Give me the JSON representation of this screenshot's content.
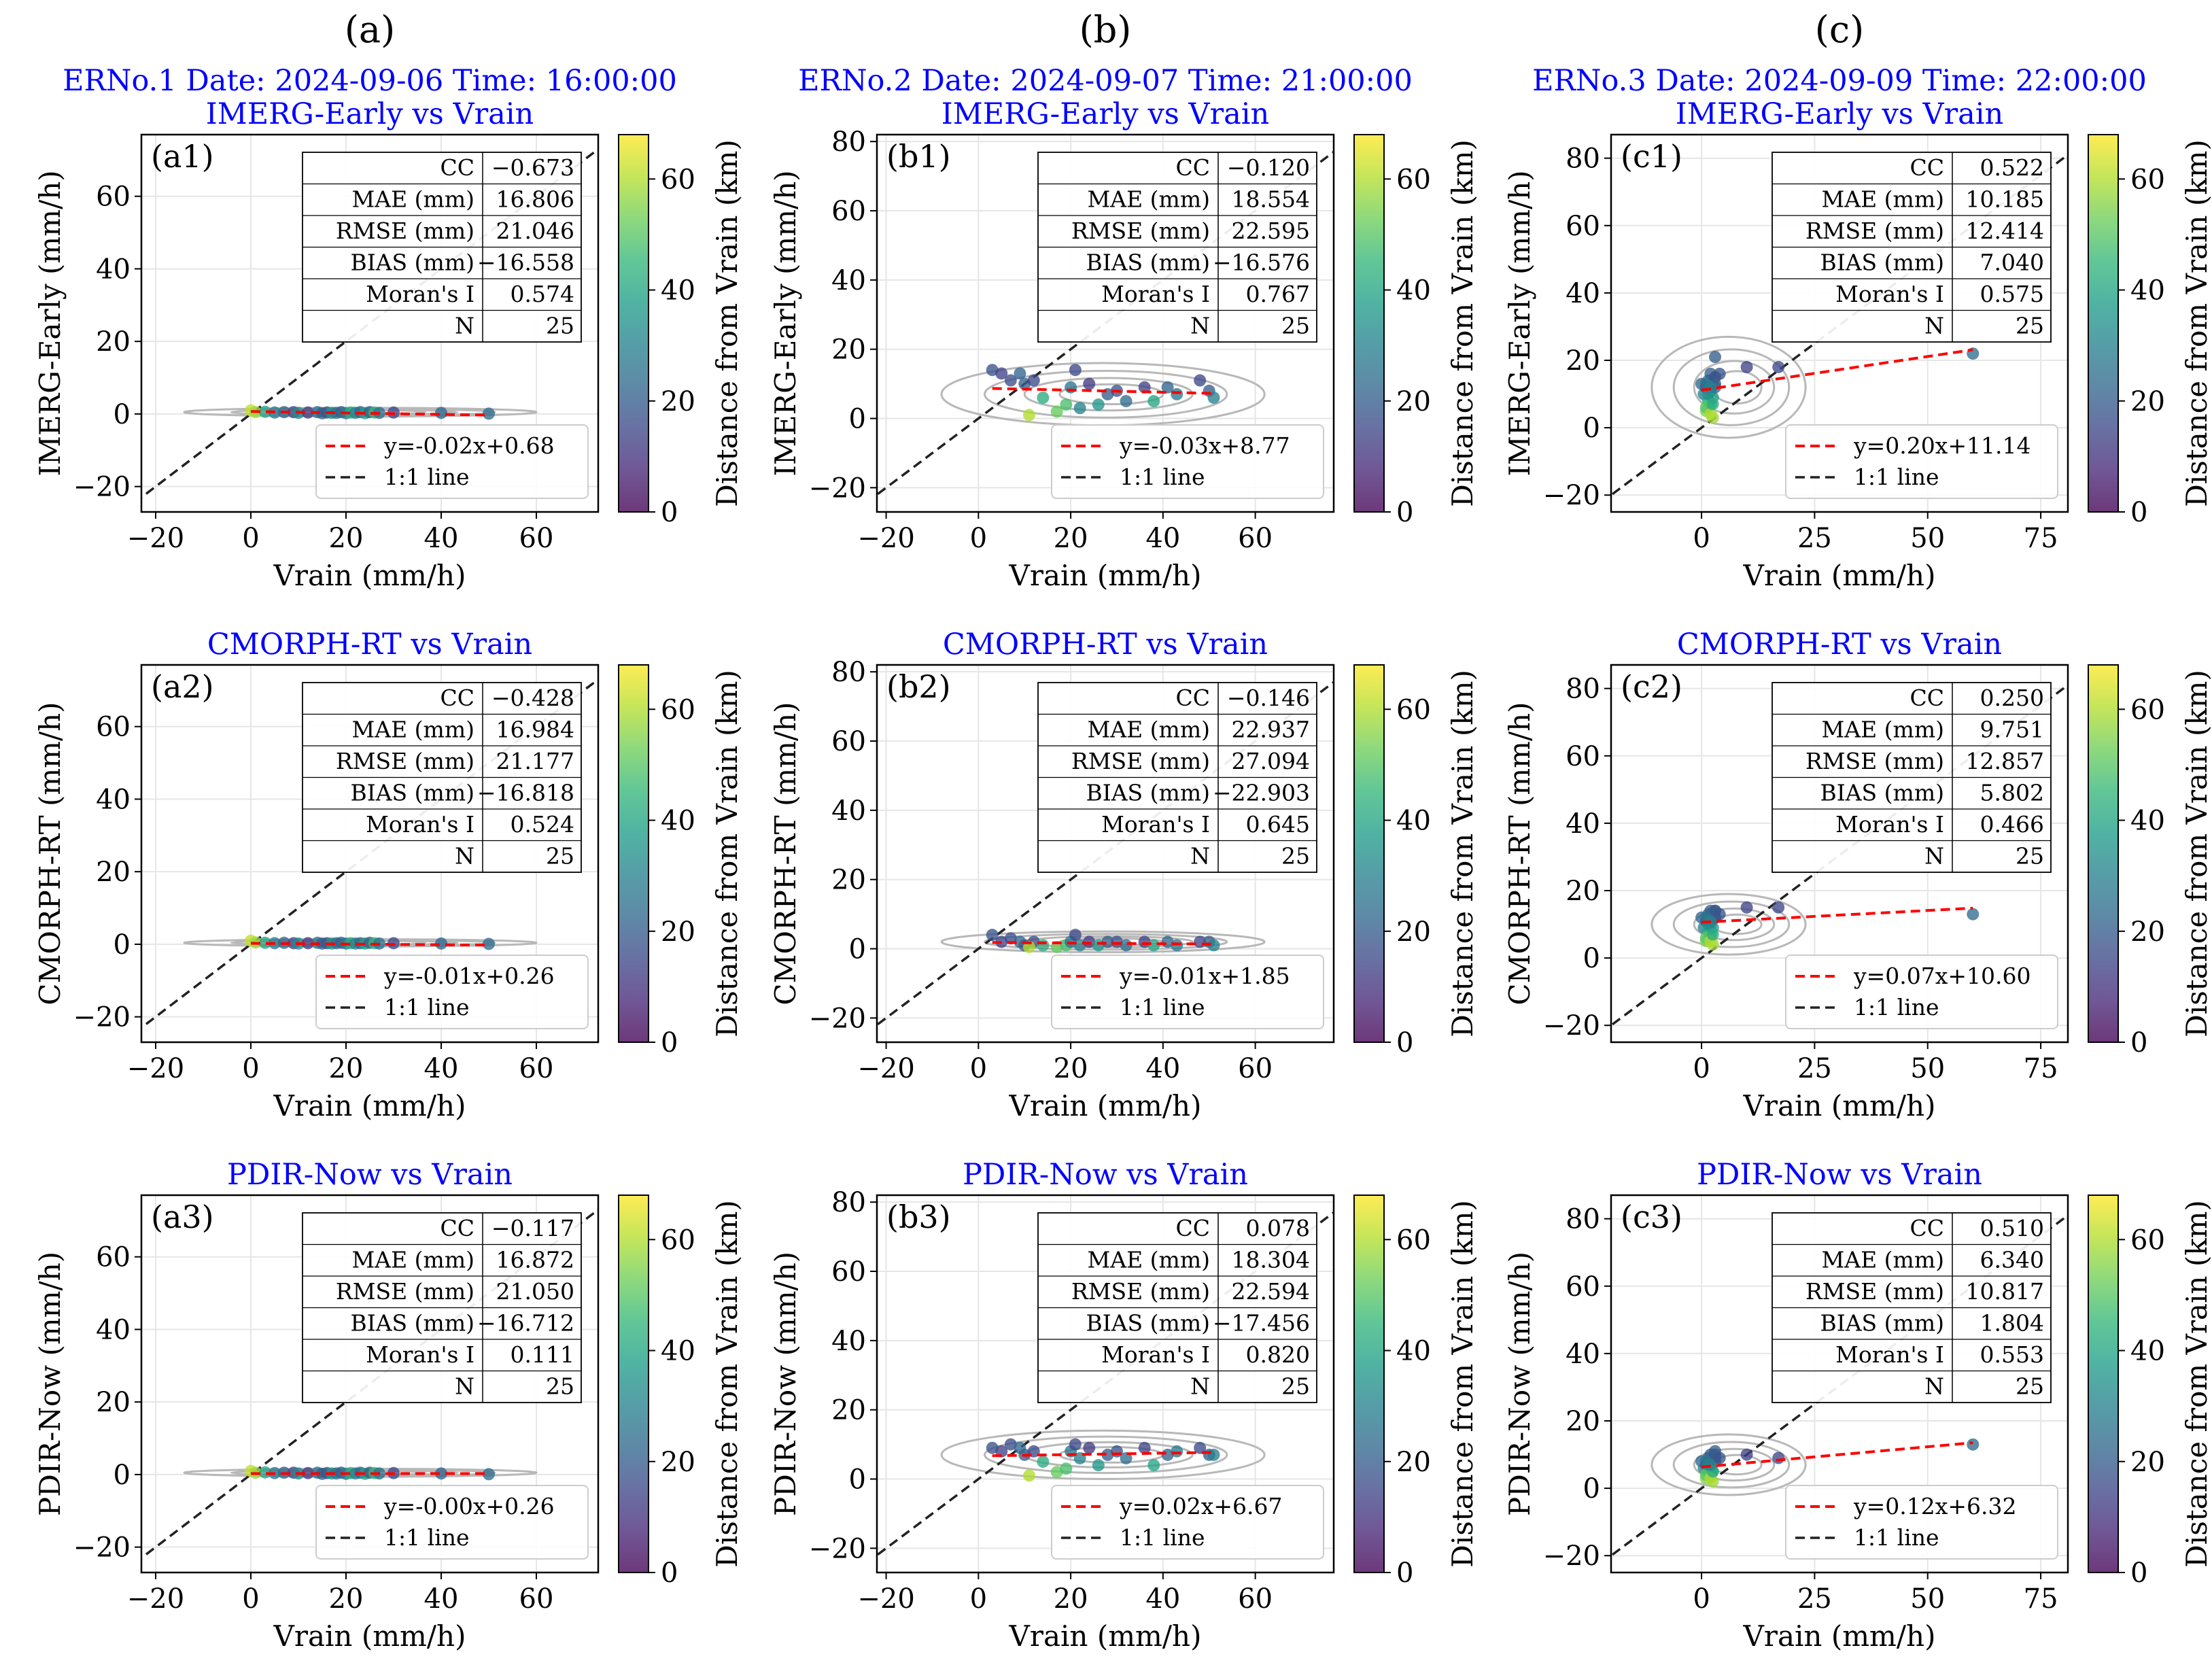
{
  "colors": {
    "title": "#0000ff",
    "fit_line": "#ff0000",
    "one_to_one": "#222222",
    "kde": "#b8b8b8",
    "grid": "#e6e6e6"
  },
  "colorbar": {
    "label": "Distance from Vrain (km)",
    "ticks": [
      0,
      20,
      40,
      60
    ],
    "range": [
      0,
      68
    ]
  },
  "legend_labels": {
    "one_to_one": "1:1 line"
  },
  "stats_labels": [
    "CC",
    "MAE (mm)",
    "RMSE (mm)",
    "BIAS (mm)",
    "Moran's I",
    "N"
  ],
  "xlabel": "Vrain (mm/h)",
  "columns": [
    {
      "letter": "(a)",
      "title": "ERNo.1 Date: 2024-09-06 Time: 16:00:00",
      "xlim": [
        -23,
        73
      ],
      "xticks": [
        -20,
        0,
        20,
        40,
        60
      ],
      "ylim": [
        -27,
        77
      ],
      "yticks": [
        -20,
        0,
        20,
        40,
        60
      ]
    },
    {
      "letter": "(b)",
      "title": "ERNo.2 Date: 2024-09-07 Time: 21:00:00",
      "xlim": [
        -22,
        77
      ],
      "xticks": [
        -20,
        0,
        20,
        40,
        60
      ],
      "ylim": [
        -27,
        82
      ],
      "yticks": [
        -20,
        0,
        20,
        40,
        60,
        80
      ]
    },
    {
      "letter": "(c)",
      "title": "ERNo.3 Date: 2024-09-09 Time: 22:00:00",
      "xlim": [
        -20,
        81
      ],
      "xticks": [
        0,
        25,
        50,
        75
      ],
      "ylim": [
        -25,
        87
      ],
      "yticks": [
        -20,
        0,
        20,
        40,
        60,
        80
      ]
    }
  ],
  "rows": [
    {
      "product_title": "IMERG-Early vs Vrain",
      "ylabel": "IMERG-Early (mm/h)"
    },
    {
      "product_title": "CMORPH-RT vs Vrain",
      "ylabel": "CMORPH-RT (mm/h)"
    },
    {
      "product_title": "PDIR-Now vs Vrain",
      "ylabel": "PDIR-Now (mm/h)"
    }
  ],
  "chart_data": [
    {
      "type": "scatter",
      "panel": "(a1)",
      "row": 0,
      "col": 0,
      "stats": [
        "−0.673",
        "16.806",
        "21.046",
        "−16.558",
        "0.574",
        "25"
      ],
      "fit": {
        "slope": -0.02,
        "intercept": 0.68,
        "label": "y=-0.02x+0.68"
      },
      "kde": {
        "cx": 23,
        "cy": 0.5,
        "rx": 37,
        "ry": 1.2
      },
      "points": [
        [
          0,
          1,
          62
        ],
        [
          1,
          0.5,
          58
        ],
        [
          3,
          0.6,
          40
        ],
        [
          5,
          0.4,
          28
        ],
        [
          7,
          0.5,
          22
        ],
        [
          9,
          0.5,
          15
        ],
        [
          10,
          0.3,
          32
        ],
        [
          12,
          0.4,
          12
        ],
        [
          14,
          0.5,
          26
        ],
        [
          15,
          0.2,
          20
        ],
        [
          16,
          0.4,
          18
        ],
        [
          17,
          0.3,
          35
        ],
        [
          18,
          0.3,
          25
        ],
        [
          19,
          0.5,
          20
        ],
        [
          20,
          0.2,
          28
        ],
        [
          21,
          0.4,
          42
        ],
        [
          22,
          0.3,
          30
        ],
        [
          23,
          0.5,
          22
        ],
        [
          24,
          0.2,
          38
        ],
        [
          25,
          0.5,
          20
        ],
        [
          26,
          0.4,
          45
        ],
        [
          27,
          0.3,
          24
        ],
        [
          30,
          0.4,
          15
        ],
        [
          40,
          0.3,
          22
        ],
        [
          50,
          0.1,
          24
        ]
      ]
    },
    {
      "type": "scatter",
      "panel": "(b1)",
      "row": 0,
      "col": 1,
      "stats": [
        "−0.120",
        "18.554",
        "22.595",
        "−16.576",
        "0.767",
        "25"
      ],
      "fit": {
        "slope": -0.03,
        "intercept": 8.77,
        "label": "y=-0.03x+8.77"
      },
      "kde": {
        "cx": 27,
        "cy": 7,
        "rx": 35,
        "ry": 9
      },
      "points": [
        [
          3,
          14,
          18
        ],
        [
          5,
          13,
          14
        ],
        [
          7,
          11,
          16
        ],
        [
          9,
          13,
          22
        ],
        [
          10,
          10,
          20
        ],
        [
          12,
          11,
          15
        ],
        [
          11,
          1,
          60
        ],
        [
          14,
          6,
          42
        ],
        [
          17,
          2,
          52
        ],
        [
          19,
          4,
          48
        ],
        [
          20,
          9,
          26
        ],
        [
          21,
          14,
          15
        ],
        [
          22,
          3,
          30
        ],
        [
          24,
          10,
          12
        ],
        [
          26,
          4,
          36
        ],
        [
          28,
          7,
          20
        ],
        [
          30,
          8,
          18
        ],
        [
          32,
          5,
          24
        ],
        [
          36,
          9,
          14
        ],
        [
          38,
          5,
          40
        ],
        [
          41,
          9,
          22
        ],
        [
          43,
          7,
          28
        ],
        [
          48,
          11,
          15
        ],
        [
          50,
          8,
          20
        ],
        [
          51,
          6,
          30
        ]
      ]
    },
    {
      "type": "scatter",
      "panel": "(c1)",
      "row": 0,
      "col": 2,
      "stats": [
        "0.522",
        "10.185",
        "12.414",
        "7.040",
        "0.575",
        "25"
      ],
      "fit": {
        "slope": 0.2,
        "intercept": 11.14,
        "label": "y=0.20x+11.14"
      },
      "kde": {
        "cx": 6,
        "cy": 12,
        "rx": 17,
        "ry": 15
      },
      "points": [
        [
          0,
          13,
          22
        ],
        [
          0.5,
          10,
          30
        ],
        [
          1,
          5,
          55
        ],
        [
          1,
          12,
          18
        ],
        [
          1.5,
          8,
          40
        ],
        [
          1.5,
          14,
          25
        ],
        [
          2,
          7,
          45
        ],
        [
          2,
          16,
          20
        ],
        [
          2,
          11,
          28
        ],
        [
          2.5,
          9,
          38
        ],
        [
          2.5,
          3,
          58
        ],
        [
          3,
          12,
          24
        ],
        [
          3,
          15,
          16
        ],
        [
          1,
          6,
          50
        ],
        [
          2,
          4,
          60
        ],
        [
          1.5,
          10,
          34
        ],
        [
          3,
          13,
          20
        ],
        [
          2.5,
          7,
          42
        ],
        [
          1,
          13,
          26
        ],
        [
          2,
          12,
          30
        ],
        [
          3,
          21,
          20
        ],
        [
          4,
          16,
          18
        ],
        [
          10,
          18,
          14
        ],
        [
          17,
          18,
          15
        ],
        [
          60,
          22,
          24
        ]
      ]
    },
    {
      "type": "scatter",
      "panel": "(a2)",
      "row": 1,
      "col": 0,
      "stats": [
        "−0.428",
        "16.984",
        "21.177",
        "−16.818",
        "0.524",
        "25"
      ],
      "fit": {
        "slope": -0.01,
        "intercept": 0.26,
        "label": "y=-0.01x+0.26"
      },
      "kde": {
        "cx": 23,
        "cy": 0.4,
        "rx": 37,
        "ry": 1.0
      },
      "points": [
        [
          0,
          1,
          62
        ],
        [
          1,
          0.5,
          58
        ],
        [
          3,
          0.4,
          40
        ],
        [
          5,
          0.3,
          28
        ],
        [
          7,
          0.4,
          22
        ],
        [
          9,
          0.3,
          15
        ],
        [
          10,
          0.2,
          32
        ],
        [
          12,
          0.3,
          12
        ],
        [
          14,
          0.4,
          26
        ],
        [
          15,
          0.2,
          20
        ],
        [
          16,
          0.3,
          18
        ],
        [
          17,
          0.2,
          35
        ],
        [
          18,
          0.3,
          25
        ],
        [
          19,
          0.4,
          20
        ],
        [
          20,
          0.2,
          28
        ],
        [
          21,
          0.3,
          42
        ],
        [
          22,
          0.2,
          30
        ],
        [
          23,
          0.3,
          22
        ],
        [
          24,
          0.2,
          38
        ],
        [
          25,
          0.4,
          20
        ],
        [
          26,
          0.3,
          45
        ],
        [
          27,
          0.2,
          24
        ],
        [
          30,
          0.3,
          15
        ],
        [
          40,
          0.2,
          22
        ],
        [
          50,
          0.1,
          24
        ]
      ]
    },
    {
      "type": "scatter",
      "panel": "(b2)",
      "row": 1,
      "col": 1,
      "stats": [
        "−0.146",
        "22.937",
        "27.094",
        "−22.903",
        "0.645",
        "25"
      ],
      "fit": {
        "slope": -0.01,
        "intercept": 1.85,
        "label": "y=-0.01x+1.85"
      },
      "kde": {
        "cx": 27,
        "cy": 2,
        "rx": 35,
        "ry": 3
      },
      "points": [
        [
          3,
          4,
          18
        ],
        [
          5,
          2,
          14
        ],
        [
          7,
          3,
          16
        ],
        [
          9,
          2,
          22
        ],
        [
          10,
          1,
          20
        ],
        [
          12,
          2,
          15
        ],
        [
          11,
          0.5,
          60
        ],
        [
          14,
          1,
          42
        ],
        [
          17,
          0.5,
          52
        ],
        [
          19,
          1,
          48
        ],
        [
          20,
          2,
          26
        ],
        [
          21,
          4,
          15
        ],
        [
          22,
          1,
          30
        ],
        [
          24,
          2,
          12
        ],
        [
          26,
          1,
          36
        ],
        [
          28,
          2,
          20
        ],
        [
          30,
          2,
          18
        ],
        [
          32,
          1,
          24
        ],
        [
          36,
          2,
          14
        ],
        [
          38,
          1,
          40
        ],
        [
          41,
          2,
          22
        ],
        [
          43,
          1,
          28
        ],
        [
          48,
          2,
          15
        ],
        [
          50,
          2,
          20
        ],
        [
          51,
          1,
          30
        ]
      ]
    },
    {
      "type": "scatter",
      "panel": "(c2)",
      "row": 1,
      "col": 2,
      "stats": [
        "0.250",
        "9.751",
        "12.857",
        "5.802",
        "0.466",
        "25"
      ],
      "fit": {
        "slope": 0.07,
        "intercept": 10.6,
        "label": "y=0.07x+10.60"
      },
      "kde": {
        "cx": 6,
        "cy": 10,
        "rx": 17,
        "ry": 9
      },
      "points": [
        [
          0,
          12,
          22
        ],
        [
          0.5,
          9,
          30
        ],
        [
          1,
          5,
          55
        ],
        [
          1,
          11,
          18
        ],
        [
          1.5,
          8,
          40
        ],
        [
          1.5,
          13,
          25
        ],
        [
          2,
          7,
          45
        ],
        [
          2,
          14,
          20
        ],
        [
          2,
          10,
          28
        ],
        [
          2.5,
          9,
          38
        ],
        [
          2.5,
          4,
          58
        ],
        [
          3,
          12,
          24
        ],
        [
          3,
          14,
          16
        ],
        [
          1,
          6,
          50
        ],
        [
          2,
          5,
          60
        ],
        [
          1.5,
          10,
          34
        ],
        [
          3,
          12,
          20
        ],
        [
          2.5,
          7,
          42
        ],
        [
          1,
          12,
          26
        ],
        [
          2,
          11,
          30
        ],
        [
          3,
          14,
          20
        ],
        [
          4,
          13,
          18
        ],
        [
          10,
          15,
          14
        ],
        [
          17,
          15,
          15
        ],
        [
          60,
          13,
          24
        ]
      ]
    },
    {
      "type": "scatter",
      "panel": "(a3)",
      "row": 2,
      "col": 0,
      "stats": [
        "−0.117",
        "16.872",
        "21.050",
        "−16.712",
        "0.111",
        "25"
      ],
      "fit": {
        "slope": 0.0,
        "intercept": 0.26,
        "label": "y=-0.00x+0.26"
      },
      "kde": {
        "cx": 23,
        "cy": 0.5,
        "rx": 37,
        "ry": 1.1
      },
      "points": [
        [
          0,
          1,
          62
        ],
        [
          1,
          0.5,
          58
        ],
        [
          3,
          0.6,
          40
        ],
        [
          5,
          0.4,
          28
        ],
        [
          7,
          0.5,
          22
        ],
        [
          9,
          0.5,
          15
        ],
        [
          10,
          0.3,
          32
        ],
        [
          12,
          0.4,
          12
        ],
        [
          14,
          0.5,
          26
        ],
        [
          15,
          0.2,
          20
        ],
        [
          16,
          0.4,
          18
        ],
        [
          17,
          0.3,
          35
        ],
        [
          18,
          0.3,
          25
        ],
        [
          19,
          0.5,
          20
        ],
        [
          20,
          0.2,
          28
        ],
        [
          21,
          0.4,
          42
        ],
        [
          22,
          0.3,
          30
        ],
        [
          23,
          0.5,
          22
        ],
        [
          24,
          0.2,
          38
        ],
        [
          25,
          0.5,
          20
        ],
        [
          26,
          0.4,
          45
        ],
        [
          27,
          0.3,
          24
        ],
        [
          30,
          0.4,
          15
        ],
        [
          40,
          0.3,
          22
        ],
        [
          50,
          0.1,
          24
        ]
      ]
    },
    {
      "type": "scatter",
      "panel": "(b3)",
      "row": 2,
      "col": 1,
      "stats": [
        "0.078",
        "18.304",
        "22.594",
        "−17.456",
        "0.820",
        "25"
      ],
      "fit": {
        "slope": 0.02,
        "intercept": 6.67,
        "label": "y=0.02x+6.67"
      },
      "kde": {
        "cx": 27,
        "cy": 7,
        "rx": 35,
        "ry": 7
      },
      "points": [
        [
          3,
          9,
          18
        ],
        [
          5,
          8,
          14
        ],
        [
          7,
          10,
          16
        ],
        [
          9,
          9,
          22
        ],
        [
          10,
          7,
          20
        ],
        [
          12,
          8,
          15
        ],
        [
          11,
          1,
          60
        ],
        [
          14,
          5,
          42
        ],
        [
          17,
          2,
          52
        ],
        [
          19,
          3,
          48
        ],
        [
          20,
          8,
          26
        ],
        [
          21,
          10,
          15
        ],
        [
          22,
          6,
          30
        ],
        [
          24,
          9,
          12
        ],
        [
          26,
          4,
          36
        ],
        [
          28,
          7,
          20
        ],
        [
          30,
          8,
          18
        ],
        [
          32,
          6,
          24
        ],
        [
          36,
          9,
          14
        ],
        [
          38,
          4,
          40
        ],
        [
          41,
          7,
          22
        ],
        [
          43,
          8,
          28
        ],
        [
          48,
          9,
          15
        ],
        [
          50,
          7,
          20
        ],
        [
          51,
          7,
          30
        ]
      ]
    },
    {
      "type": "scatter",
      "panel": "(c3)",
      "row": 2,
      "col": 2,
      "stats": [
        "0.510",
        "6.340",
        "10.817",
        "1.804",
        "0.553",
        "25"
      ],
      "fit": {
        "slope": 0.12,
        "intercept": 6.32,
        "label": "y=0.12x+6.32"
      },
      "kde": {
        "cx": 6,
        "cy": 7,
        "rx": 17,
        "ry": 9
      },
      "points": [
        [
          0,
          8,
          22
        ],
        [
          0.5,
          6,
          30
        ],
        [
          1,
          3,
          55
        ],
        [
          1,
          7,
          18
        ],
        [
          1.5,
          5,
          40
        ],
        [
          1.5,
          9,
          25
        ],
        [
          2,
          4,
          45
        ],
        [
          2,
          10,
          20
        ],
        [
          2,
          6,
          28
        ],
        [
          2.5,
          5,
          38
        ],
        [
          2.5,
          2,
          58
        ],
        [
          3,
          8,
          24
        ],
        [
          3,
          10,
          16
        ],
        [
          1,
          4,
          50
        ],
        [
          2,
          3,
          60
        ],
        [
          1.5,
          7,
          34
        ],
        [
          3,
          9,
          20
        ],
        [
          2.5,
          5,
          42
        ],
        [
          1,
          8,
          26
        ],
        [
          2,
          7,
          30
        ],
        [
          3,
          11,
          20
        ],
        [
          4,
          9,
          18
        ],
        [
          10,
          10,
          14
        ],
        [
          17,
          9,
          15
        ],
        [
          60,
          13,
          24
        ]
      ]
    }
  ]
}
